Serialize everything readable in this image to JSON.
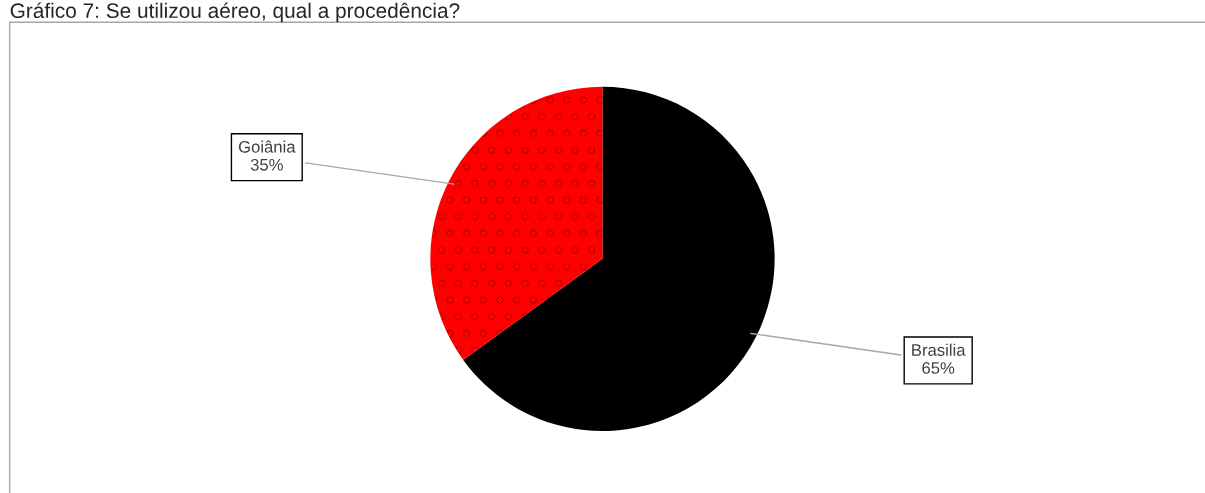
{
  "chart_data": {
    "type": "pie",
    "title": "Gráfico 7: Se utilizou aéreo, qual a procedência?",
    "categories": [
      "Brasilia",
      "Goiânia"
    ],
    "values": [
      65,
      35
    ],
    "value_labels": [
      "65%",
      "35%"
    ],
    "colors": [
      "#000000",
      "#ff0000"
    ]
  }
}
